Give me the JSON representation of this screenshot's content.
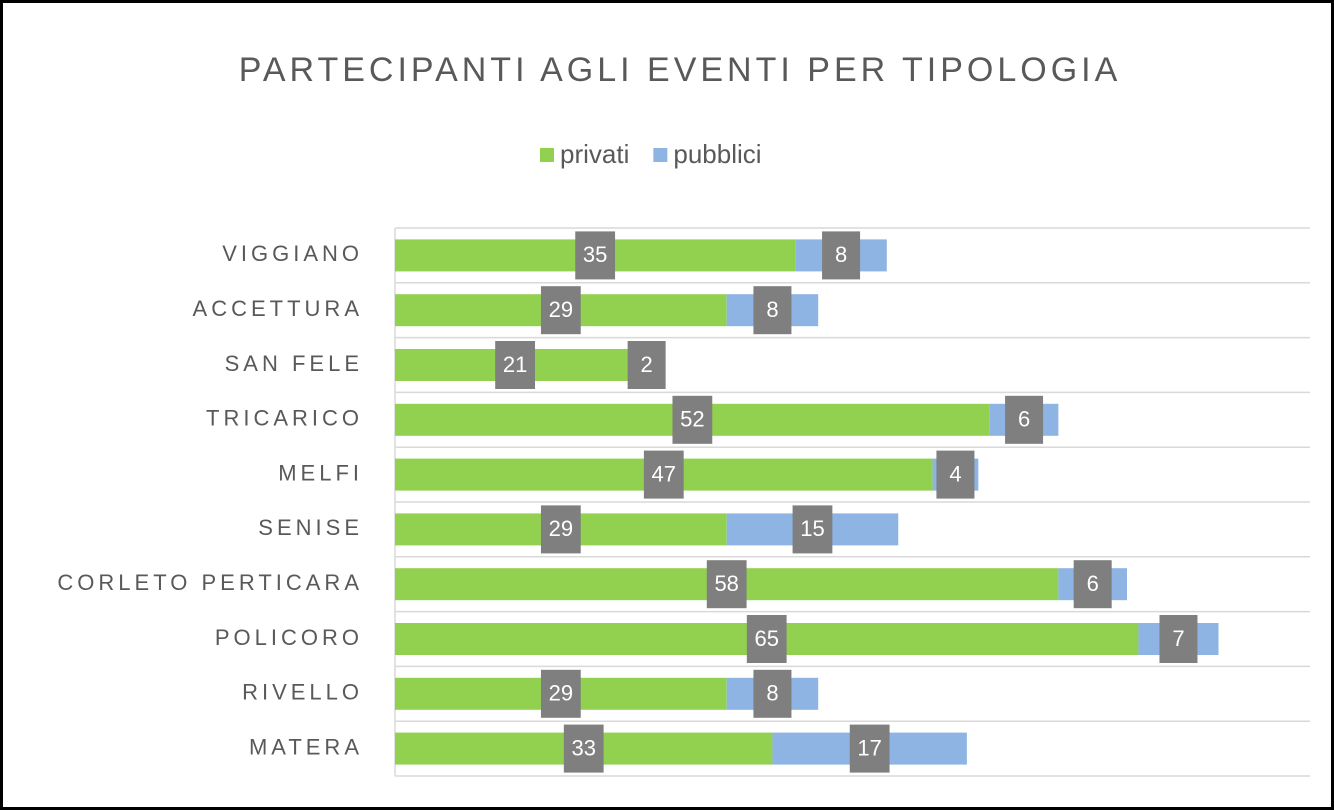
{
  "chart_data": {
    "type": "stacked-bar-horizontal",
    "title": "PARTECIPANTI AGLI EVENTI PER TIPOLOGIA",
    "categories": [
      "VIGGIANO",
      "ACCETTURA",
      "SAN FELE",
      "TRICARICO",
      "MELFI",
      "SENISE",
      "CORLETO PERTICARA",
      "POLICORO",
      "RIVELLO",
      "MATERA"
    ],
    "series": [
      {
        "name": "privati",
        "color": "#92d050",
        "values": [
          35,
          29,
          21,
          52,
          47,
          29,
          58,
          65,
          29,
          33
        ]
      },
      {
        "name": "pubblici",
        "color": "#8db4e2",
        "values": [
          8,
          8,
          2,
          6,
          4,
          15,
          6,
          7,
          8,
          17
        ]
      }
    ],
    "xlim": [
      0,
      80
    ],
    "legend": "top"
  }
}
